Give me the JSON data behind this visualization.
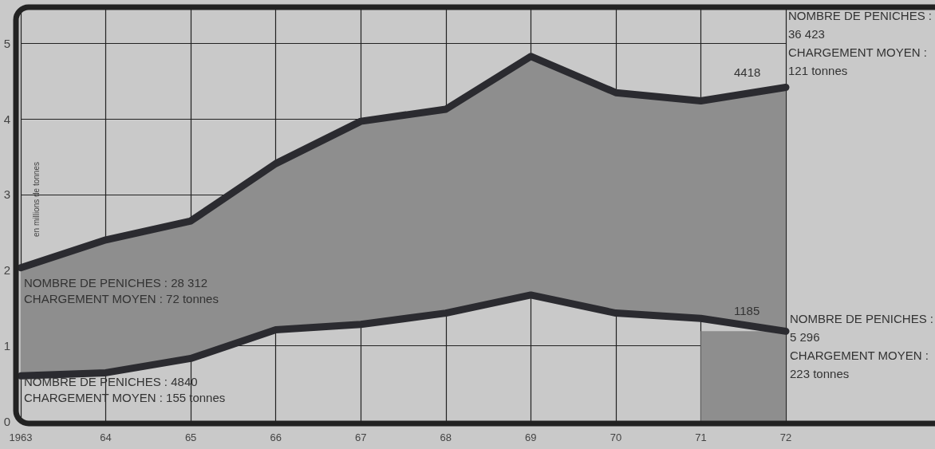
{
  "chart_data": {
    "type": "line",
    "ylabel": "en millions de tonnes",
    "categories": [
      "1963",
      "64",
      "65",
      "66",
      "67",
      "68",
      "69",
      "70",
      "71",
      "72"
    ],
    "series": [
      {
        "color": "#2b2b30",
        "values": [
          2.03,
          2.4,
          2.65,
          3.41,
          3.97,
          4.13,
          4.83,
          4.35,
          4.24,
          4.42
        ],
        "lower": [
          0.6,
          0.64,
          0.83,
          1.21,
          1.28,
          1.43,
          1.67,
          1.43,
          1.36,
          1.19
        ],
        "upper": [
          2.03,
          2.4,
          2.65,
          3.41,
          3.97,
          4.13,
          4.83,
          4.35,
          4.24,
          4.42
        ]
      },
      {
        "color": "#2b2b30",
        "values": [
          0.6,
          0.64,
          0.83,
          1.21,
          1.28,
          1.43,
          1.67,
          1.43,
          1.36,
          1.19
        ]
      }
    ],
    "bands": [
      {
        "axis": "x",
        "from": "71",
        "to": "72",
        "color": "#8e8e8e"
      }
    ],
    "ylim": [
      0,
      5.45
    ],
    "yticks": [
      0,
      1,
      2,
      3,
      4,
      5
    ],
    "grid": true,
    "line_style": "solid",
    "annotations": [
      "4418",
      "1185",
      "NOMBRE DE PENICHES : 28 312\nCHARGEMENT MOYEN : 72 tonnes",
      "NOMBRE DE PENICHES : 4840\nCHARGEMENT MOYEN : 155 tonnes",
      "NOMBRE DE PENICHES :\n36 423\nCHARGEMENT MOYEN :\n121 tonnes",
      "NOMBRE DE PENICHES :\n5 296\nCHARGEMENT MOYEN :\n223 tonnes"
    ]
  }
}
